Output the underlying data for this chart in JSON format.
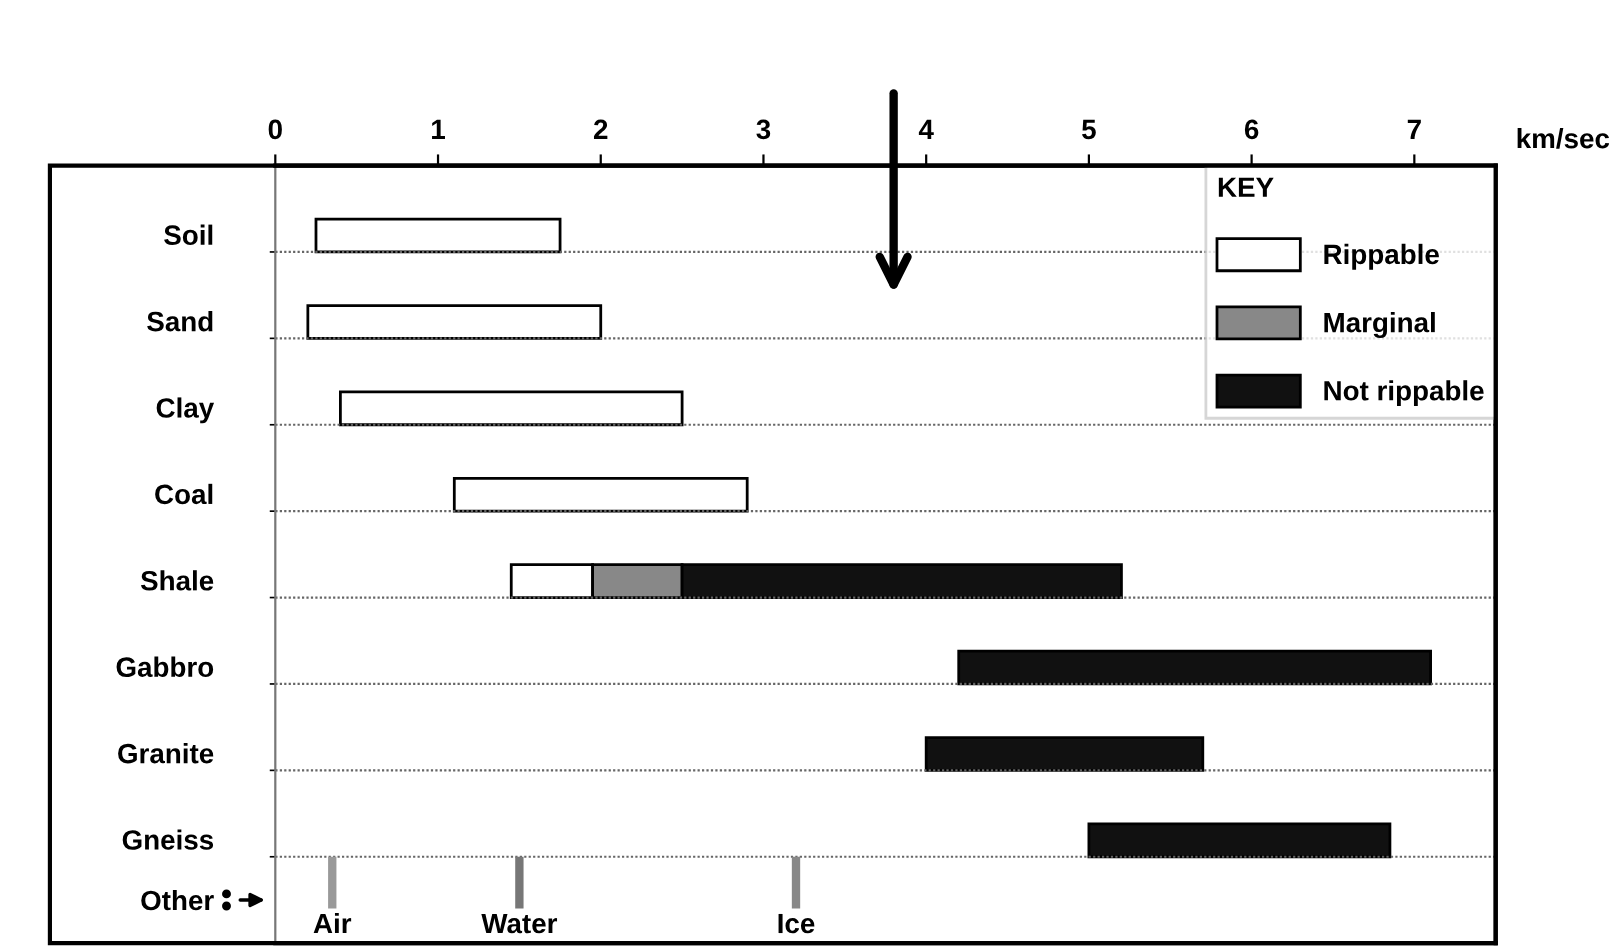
{
  "chart_data": {
    "type": "bar",
    "orientation": "horizontal",
    "categories": [
      "Soil",
      "Sand",
      "Clay",
      "Coal",
      "Shale",
      "Gabbro",
      "Granite",
      "Gneiss",
      "Other"
    ],
    "series": [
      {
        "name": "Rippable",
        "color": "#ffffff",
        "base": [
          0.25,
          0.2,
          0.4,
          1.1,
          1.45,
          null,
          null,
          null,
          null
        ],
        "values": [
          1.5,
          1.8,
          2.1,
          1.8,
          0.5,
          null,
          null,
          null,
          null
        ]
      },
      {
        "name": "Marginal",
        "color": "#888888",
        "base": [
          null,
          null,
          null,
          null,
          1.95,
          null,
          null,
          null,
          null
        ],
        "values": [
          null,
          null,
          null,
          null,
          0.55,
          null,
          null,
          null,
          null
        ]
      },
      {
        "name": "Not rippable",
        "color": "#111111",
        "base": [
          null,
          null,
          null,
          null,
          2.5,
          4.2,
          4.0,
          5.0,
          null
        ],
        "values": [
          null,
          null,
          null,
          null,
          2.7,
          2.9,
          1.7,
          1.85,
          null
        ]
      }
    ],
    "xlabel": "km/sec",
    "xlim": [
      0,
      7.5
    ],
    "xticks": [
      0,
      1,
      2,
      3,
      4,
      5,
      6,
      7
    ],
    "legend": "top right",
    "legend_title": "KEY",
    "grid": "y",
    "ref_lines": [
      {
        "axis": "x",
        "value": 0.35,
        "label": "Air",
        "color": "#999999"
      },
      {
        "axis": "x",
        "value": 1.5,
        "label": "Water",
        "color": "#777777"
      },
      {
        "axis": "x",
        "value": 3.2,
        "label": "Ice",
        "color": "#888888"
      }
    ]
  }
}
